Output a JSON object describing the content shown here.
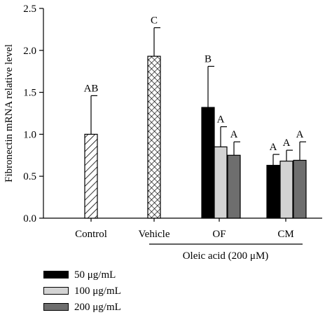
{
  "chart_data": {
    "type": "bar",
    "ylabel": "Fibronectin mRNA relative level",
    "ylim": [
      0,
      2.5
    ],
    "yticks": [
      "0.0",
      "0.5",
      "1.0",
      "1.5",
      "2.0",
      "2.5"
    ],
    "categories": [
      "Control",
      "Vehicle",
      "OF",
      "CM"
    ],
    "group_label": "Oleic acid (200 μM)",
    "bars": [
      {
        "category": "Control",
        "series": "control",
        "value": 1.0,
        "error": 0.46,
        "letter": "AB"
      },
      {
        "category": "Vehicle",
        "series": "vehicle",
        "value": 1.93,
        "error": 0.34,
        "letter": "C"
      },
      {
        "category": "OF",
        "series": "50 μg/mL",
        "value": 1.32,
        "error": 0.49,
        "letter": "B"
      },
      {
        "category": "OF",
        "series": "100 μg/mL",
        "value": 0.85,
        "error": 0.24,
        "letter": "A"
      },
      {
        "category": "OF",
        "series": "200 μg/mL",
        "value": 0.75,
        "error": 0.16,
        "letter": "A"
      },
      {
        "category": "CM",
        "series": "50 μg/mL",
        "value": 0.63,
        "error": 0.13,
        "letter": "A"
      },
      {
        "category": "CM",
        "series": "100 μg/mL",
        "value": 0.68,
        "error": 0.13,
        "letter": "A"
      },
      {
        "category": "CM",
        "series": "200 μg/mL",
        "value": 0.69,
        "error": 0.22,
        "letter": "A"
      }
    ],
    "legend": [
      {
        "name": "50 μg/mL",
        "color": "#000000"
      },
      {
        "name": "100 μg/mL",
        "color": "#d3d3d3"
      },
      {
        "name": "200 μg/mL",
        "color": "#6e6e6e"
      }
    ],
    "patterns": {
      "control": "diagonal-hatch",
      "vehicle": "cross-hatch"
    }
  }
}
